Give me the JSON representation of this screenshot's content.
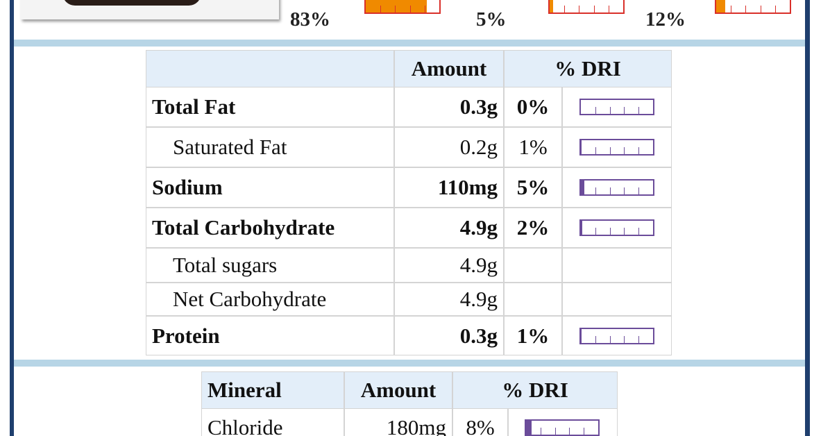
{
  "summary": [
    "83%",
    "5%",
    "12%"
  ],
  "nutrients": {
    "header": {
      "amount": "Amount",
      "dri": "% DRI"
    },
    "rows": [
      {
        "name": "Total Fat",
        "amount": "0.3g",
        "dri": "0%",
        "bold": true
      },
      {
        "name": "Saturated Fat",
        "amount": "0.2g",
        "dri": "1%",
        "bold": false
      },
      {
        "name": "Sodium",
        "amount": "110mg",
        "dri": "5%",
        "bold": true
      },
      {
        "name": "Total Carbohydrate",
        "amount": "4.9g",
        "dri": "2%",
        "bold": true
      },
      {
        "name": "Total sugars",
        "amount": "4.9g",
        "bold": false
      },
      {
        "name": "Net Carbohydrate",
        "amount": "4.9g",
        "bold": false
      },
      {
        "name": "Protein",
        "amount": "0.3g",
        "dri": "1%",
        "bold": true
      }
    ]
  },
  "minerals": {
    "header": {
      "mineral": "Mineral",
      "amount": "Amount",
      "dri": "% DRI"
    },
    "rows": [
      {
        "name": "Chloride",
        "amount": "180mg",
        "dri": "8%"
      }
    ]
  }
}
